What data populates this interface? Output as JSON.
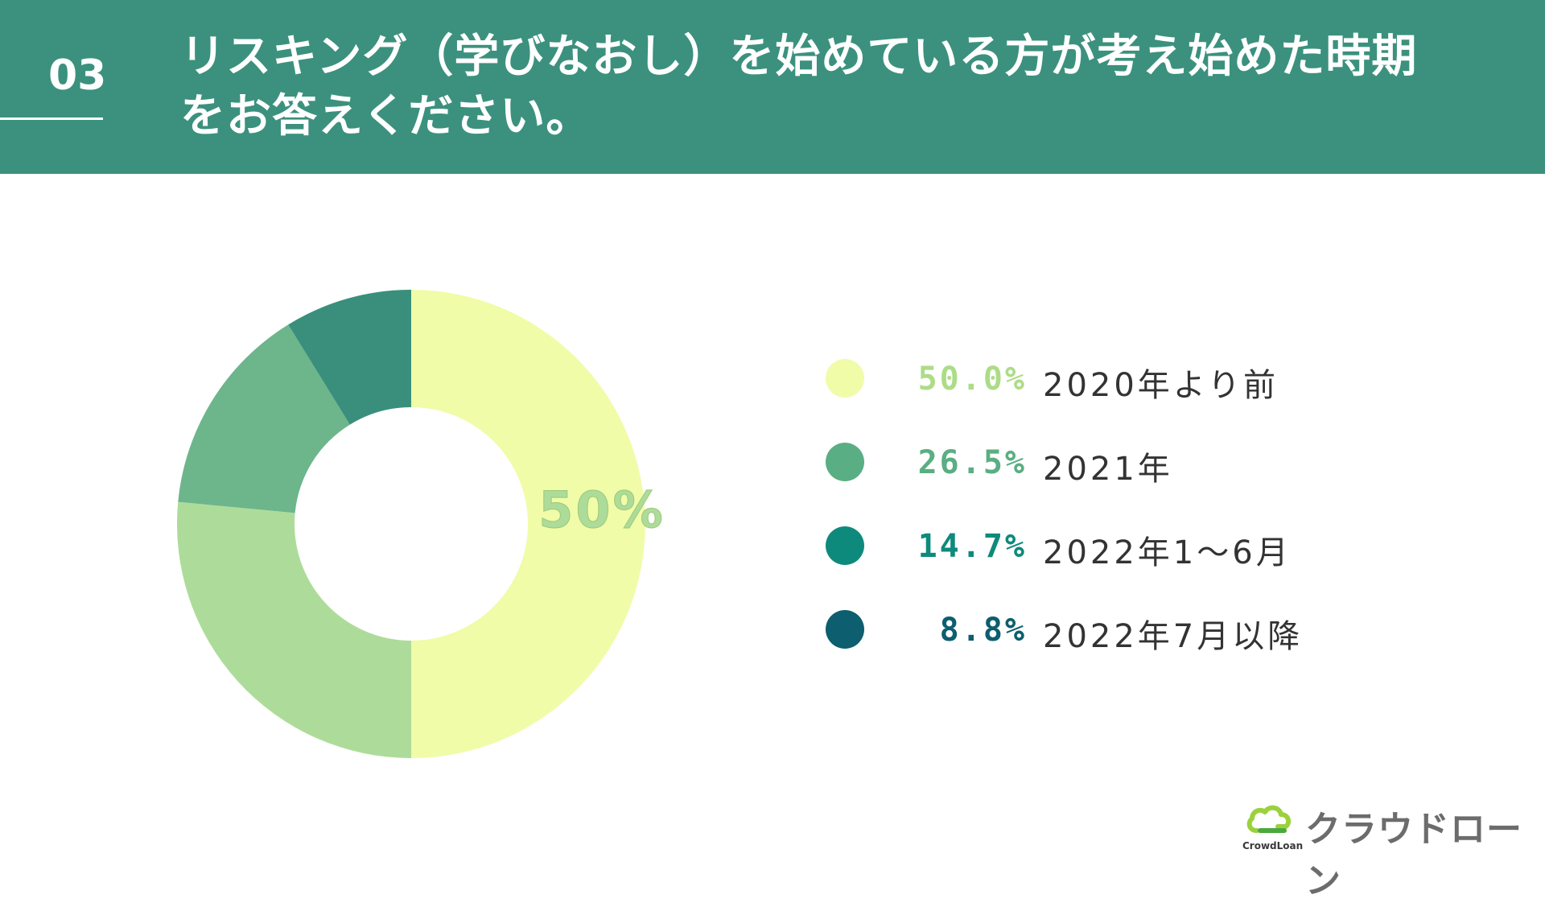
{
  "header": {
    "number": "03",
    "title_line1": "リスキング（学びなおし）を始めている方が考え始めた時期",
    "title_line2": "をお答えください。"
  },
  "chart_data": {
    "type": "pie",
    "donut": true,
    "highlight_label": "50%",
    "categories": [
      "2020年より前",
      "2021年",
      "2022年1〜6月",
      "2022年7月以降"
    ],
    "values": [
      50.0,
      26.5,
      14.7,
      8.8
    ],
    "value_labels": [
      "50.0%",
      "26.5%",
      "14.7%",
      "8.8%"
    ],
    "slice_colors": [
      "#f0fca8",
      "#addc9a",
      "#6db58b",
      "#3a8f7c"
    ],
    "legend_colors": [
      "#f0fca8",
      "#5aae83",
      "#0e8a7c",
      "#0d5e6e"
    ],
    "legend_text_colors": [
      "#addc88",
      "#5aae83",
      "#0e8a7c",
      "#0d5e6e"
    ],
    "legend_position": "right"
  },
  "logo": {
    "name": "クラウドローン",
    "sub": "CrowdLoan"
  }
}
